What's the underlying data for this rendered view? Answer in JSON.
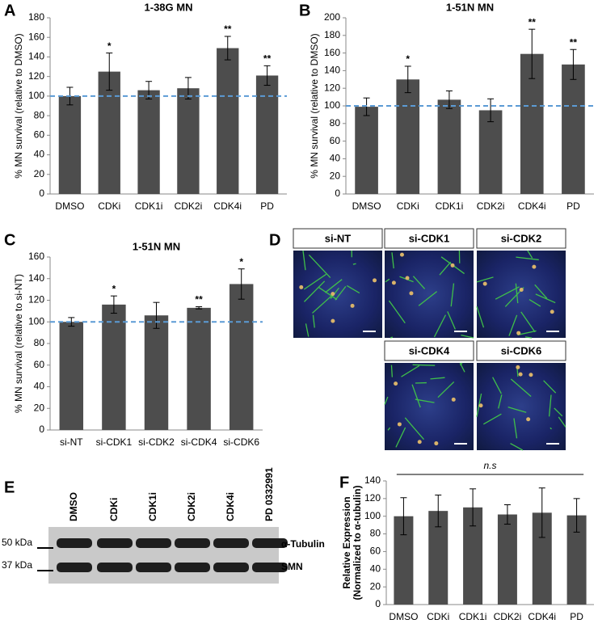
{
  "chart_data": [
    {
      "type": "bar",
      "panel": "A",
      "title": "1-38G MN",
      "y_label": "% MN survival (relative to DMSO)",
      "categories": [
        "DMSO",
        "CDKi",
        "CDK1i",
        "CDK2i",
        "CDK4i",
        "PD"
      ],
      "values": [
        100,
        125,
        106,
        108,
        149,
        121
      ],
      "errors": [
        9,
        19,
        9,
        11,
        12,
        10
      ],
      "annotations": [
        null,
        "*",
        null,
        null,
        "**",
        "**"
      ],
      "reference_line": 100,
      "color": "#4d4d4d",
      "reference_color": "#5b9bd5",
      "ylim": [
        0,
        180
      ],
      "yticks": [
        0,
        20,
        40,
        60,
        80,
        100,
        120,
        140,
        160,
        180
      ]
    },
    {
      "type": "bar",
      "panel": "B",
      "title": "1-51N MN",
      "y_label": "% MN survival (relative to DMSO)",
      "categories": [
        "DMSO",
        "CDKi",
        "CDK1i",
        "CDK2i",
        "CDK4i",
        "PD"
      ],
      "values": [
        99,
        130,
        107,
        95,
        159,
        147
      ],
      "errors": [
        10,
        15,
        10,
        13,
        28,
        17
      ],
      "annotations": [
        null,
        "*",
        null,
        null,
        "**",
        "**"
      ],
      "reference_line": 100,
      "color": "#4d4d4d",
      "reference_color": "#5b9bd5",
      "ylim": [
        0,
        200
      ],
      "yticks": [
        0,
        20,
        40,
        60,
        80,
        100,
        120,
        140,
        160,
        180,
        200
      ]
    },
    {
      "type": "bar",
      "panel": "C",
      "title": "1-51N MN",
      "y_label": "% MN survival (relative to si-NT)",
      "categories": [
        "si-NT",
        "si-CDK1",
        "si-CDK2",
        "si-CDK4",
        "si-CDK6"
      ],
      "values": [
        100,
        116,
        106,
        113,
        135
      ],
      "errors": [
        4,
        8,
        12,
        1,
        14
      ],
      "annotations": [
        null,
        "*",
        null,
        "**",
        "*"
      ],
      "reference_line": 100,
      "color": "#4d4d4d",
      "reference_color": "#5b9bd5",
      "ylim": [
        0,
        160
      ],
      "yticks": [
        0,
        20,
        40,
        60,
        80,
        100,
        120,
        140,
        160
      ]
    },
    {
      "type": "bar",
      "panel": "F",
      "y_label": [
        "Relative Expression",
        "(Normalized to α-tubulin)"
      ],
      "categories": [
        "DMSO",
        "CDKi",
        "CDK1i",
        "CDK2i",
        "CDK4i",
        "PD"
      ],
      "values": [
        100,
        106,
        110,
        102,
        104,
        101
      ],
      "errors": [
        21,
        18,
        21,
        11,
        28,
        19
      ],
      "significance": "n.s",
      "color": "#4d4d4d",
      "ylim": [
        0,
        140
      ],
      "yticks": [
        0,
        20,
        40,
        60,
        80,
        100,
        120,
        140
      ]
    }
  ],
  "panel_d": {
    "letter": "D",
    "labels": [
      "si-NT",
      "si-CDK1",
      "si-CDK2",
      "si-CDK4",
      "si-CDK6"
    ]
  },
  "panel_e": {
    "letter": "E",
    "lanes": [
      "DMSO",
      "CDKi",
      "CDK1i",
      "CDK2i",
      "CDK4i",
      "PD 0332991"
    ],
    "markers": [
      "50 kDa",
      "37 kDa"
    ],
    "bands": [
      "α-Tubulin",
      "SMN"
    ]
  }
}
